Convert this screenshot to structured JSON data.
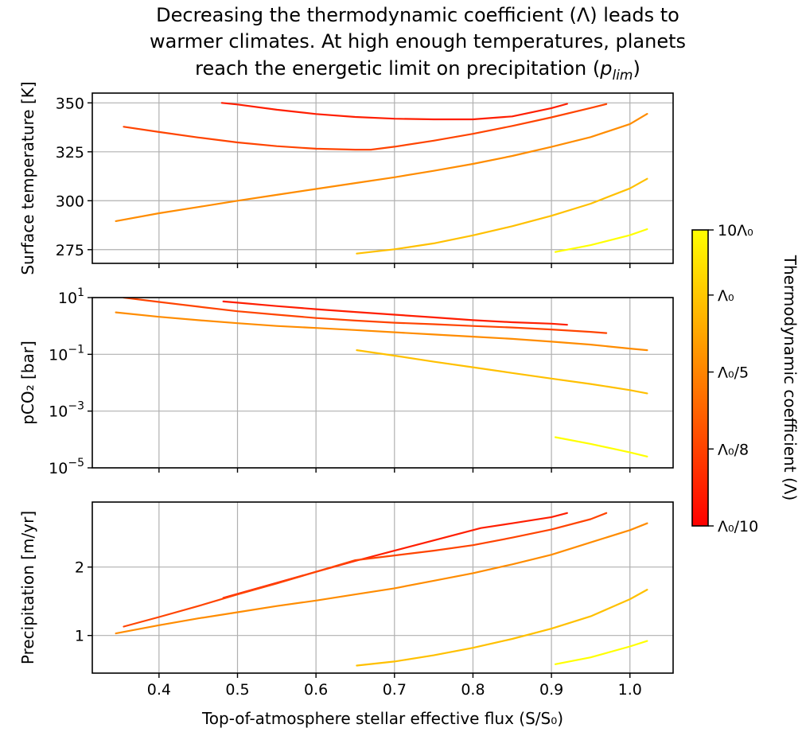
{
  "title": {
    "line1": "Decreasing the thermodynamic coefficient (Λ) leads to",
    "line2": "warmer climates. At high enough temperatures, planets",
    "line3_pre": "reach the energetic limit on precipitation (",
    "line3_sym": "p",
    "line3_sub": "lim",
    "line3_post": ")"
  },
  "colorbar": {
    "label": "Thermodynamic coefficient (Λ)",
    "ticks": [
      {
        "label": "10Λ₀",
        "position": 1.0
      },
      {
        "label": "Λ₀",
        "position": 0.78
      },
      {
        "label": "Λ₀/5",
        "position": 0.52
      },
      {
        "label": "Λ₀/8",
        "position": 0.26
      },
      {
        "label": "Λ₀/10",
        "position": 0.0
      }
    ],
    "colormap": "autumn",
    "color_low": "#ff0000",
    "color_high": "#ffff00"
  },
  "chart_data": [
    {
      "type": "line",
      "id": "temperature",
      "ylabel": "Surface temperature [K]",
      "xlim": [
        0.315,
        1.055
      ],
      "ylim": [
        268,
        355
      ],
      "yticks": [
        275,
        300,
        325,
        350
      ],
      "ytick_labels": [
        "275",
        "300",
        "325",
        "350"
      ],
      "xticks": [
        0.4,
        0.5,
        0.6,
        0.7,
        0.8,
        0.9,
        1.0
      ],
      "grid": true,
      "series": [
        {
          "color": "#ff1e00",
          "x": [
            0.48,
            0.5,
            0.55,
            0.6,
            0.65,
            0.7,
            0.75,
            0.8,
            0.85,
            0.9,
            0.92
          ],
          "y": [
            350,
            349.2,
            346.5,
            344.3,
            342.8,
            341.9,
            341.6,
            341.6,
            343.1,
            347.3,
            349.5
          ]
        },
        {
          "color": "#ff4400",
          "x": [
            0.355,
            0.4,
            0.45,
            0.5,
            0.55,
            0.6,
            0.65,
            0.67,
            0.7,
            0.75,
            0.8,
            0.85,
            0.9,
            0.95,
            0.97
          ],
          "y": [
            337.8,
            335.1,
            332.3,
            329.8,
            327.9,
            326.6,
            326.1,
            326.1,
            327.6,
            330.7,
            334.2,
            338.2,
            342.6,
            347.4,
            349.4
          ]
        },
        {
          "color": "#ff8c00",
          "x": [
            0.345,
            0.4,
            0.45,
            0.5,
            0.55,
            0.6,
            0.65,
            0.7,
            0.75,
            0.8,
            0.85,
            0.9,
            0.95,
            1.0,
            1.022
          ],
          "y": [
            289.6,
            293.6,
            296.8,
            300.0,
            303.0,
            306.0,
            309.0,
            312.0,
            315.3,
            318.8,
            322.9,
            327.5,
            332.5,
            339.2,
            344.4
          ]
        },
        {
          "color": "#ffc000",
          "x": [
            0.652,
            0.7,
            0.75,
            0.8,
            0.85,
            0.9,
            0.95,
            1.0,
            1.022
          ],
          "y": [
            273.0,
            275.2,
            278.2,
            282.3,
            287.0,
            292.3,
            298.5,
            306.3,
            311.2
          ]
        },
        {
          "color": "#ffff00",
          "x": [
            0.905,
            0.95,
            1.0,
            1.022
          ],
          "y": [
            273.8,
            277.3,
            282.4,
            285.5
          ]
        }
      ]
    },
    {
      "type": "line",
      "id": "pco2",
      "ylabel": "pCO₂ [bar]",
      "yscale": "log",
      "xlim": [
        0.315,
        1.055
      ],
      "ylim": [
        1e-05,
        10
      ],
      "ytick_exponents": [
        "1",
        "−1",
        "−3",
        "−5"
      ],
      "ytick_values": [
        10,
        0.1,
        0.001,
        1e-05
      ],
      "xticks": [
        0.4,
        0.5,
        0.6,
        0.7,
        0.8,
        0.9,
        1.0
      ],
      "grid": true,
      "series": [
        {
          "color": "#ff1e00",
          "x": [
            0.482,
            0.5,
            0.55,
            0.6,
            0.65,
            0.7,
            0.75,
            0.8,
            0.85,
            0.9,
            0.92
          ],
          "y": [
            7.3,
            6.6,
            5.0,
            3.9,
            3.1,
            2.5,
            2.0,
            1.6,
            1.35,
            1.2,
            1.1
          ]
        },
        {
          "color": "#ff4400",
          "x": [
            0.355,
            0.4,
            0.45,
            0.5,
            0.55,
            0.6,
            0.65,
            0.7,
            0.75,
            0.8,
            0.85,
            0.9,
            0.95,
            0.97
          ],
          "y": [
            10,
            7.0,
            4.8,
            3.3,
            2.5,
            1.9,
            1.55,
            1.3,
            1.15,
            1.0,
            0.88,
            0.75,
            0.62,
            0.56
          ]
        },
        {
          "color": "#ff8c00",
          "x": [
            0.345,
            0.4,
            0.45,
            0.5,
            0.55,
            0.6,
            0.65,
            0.7,
            0.75,
            0.8,
            0.85,
            0.9,
            0.95,
            1.0,
            1.022
          ],
          "y": [
            3.0,
            2.1,
            1.6,
            1.25,
            1.0,
            0.85,
            0.72,
            0.6,
            0.5,
            0.42,
            0.35,
            0.28,
            0.22,
            0.16,
            0.14
          ]
        },
        {
          "color": "#ffc000",
          "x": [
            0.652,
            0.7,
            0.75,
            0.8,
            0.85,
            0.9,
            0.95,
            1.0,
            1.022
          ],
          "y": [
            0.14,
            0.09,
            0.055,
            0.035,
            0.022,
            0.014,
            0.009,
            0.0055,
            0.0042
          ]
        },
        {
          "color": "#ffff00",
          "x": [
            0.905,
            0.95,
            1.0,
            1.022
          ],
          "y": [
            0.00012,
            7e-05,
            3.5e-05,
            2.5e-05
          ]
        }
      ]
    },
    {
      "type": "line",
      "id": "precipitation",
      "ylabel": "Precipitation [m/yr]",
      "xlabel": "Top-of-atmosphere stellar effective flux (S/S₀)",
      "xlim": [
        0.315,
        1.055
      ],
      "ylim": [
        0.45,
        2.95
      ],
      "yticks": [
        1,
        2
      ],
      "ytick_labels": [
        "1",
        "2"
      ],
      "xticks": [
        0.4,
        0.5,
        0.6,
        0.7,
        0.8,
        0.9,
        1.0
      ],
      "xtick_labels": [
        "0.4",
        "0.5",
        "0.6",
        "0.7",
        "0.8",
        "0.9",
        "1.0"
      ],
      "grid": true,
      "series": [
        {
          "color": "#ff1e00",
          "x": [
            0.482,
            0.55,
            0.6,
            0.65,
            0.7,
            0.75,
            0.81,
            0.85,
            0.9,
            0.92
          ],
          "y": [
            1.55,
            1.77,
            1.93,
            2.09,
            2.24,
            2.39,
            2.57,
            2.64,
            2.73,
            2.79
          ]
        },
        {
          "color": "#ff4400",
          "x": [
            0.355,
            0.4,
            0.45,
            0.5,
            0.55,
            0.6,
            0.65,
            0.7,
            0.75,
            0.8,
            0.85,
            0.9,
            0.95,
            0.97
          ],
          "y": [
            1.13,
            1.27,
            1.43,
            1.6,
            1.76,
            1.93,
            2.1,
            2.17,
            2.24,
            2.32,
            2.43,
            2.55,
            2.7,
            2.79
          ]
        },
        {
          "color": "#ff8c00",
          "x": [
            0.345,
            0.4,
            0.45,
            0.5,
            0.55,
            0.6,
            0.65,
            0.7,
            0.75,
            0.8,
            0.85,
            0.9,
            0.95,
            1.0,
            1.022
          ],
          "y": [
            1.03,
            1.15,
            1.25,
            1.34,
            1.43,
            1.51,
            1.6,
            1.69,
            1.8,
            1.91,
            2.04,
            2.18,
            2.36,
            2.54,
            2.64
          ]
        },
        {
          "color": "#ffc000",
          "x": [
            0.652,
            0.7,
            0.75,
            0.8,
            0.85,
            0.9,
            0.95,
            1.0,
            1.022
          ],
          "y": [
            0.56,
            0.62,
            0.71,
            0.82,
            0.95,
            1.1,
            1.28,
            1.53,
            1.67
          ]
        },
        {
          "color": "#ffff00",
          "x": [
            0.905,
            0.95,
            1.0,
            1.022
          ],
          "y": [
            0.58,
            0.68,
            0.84,
            0.92
          ]
        }
      ]
    }
  ]
}
